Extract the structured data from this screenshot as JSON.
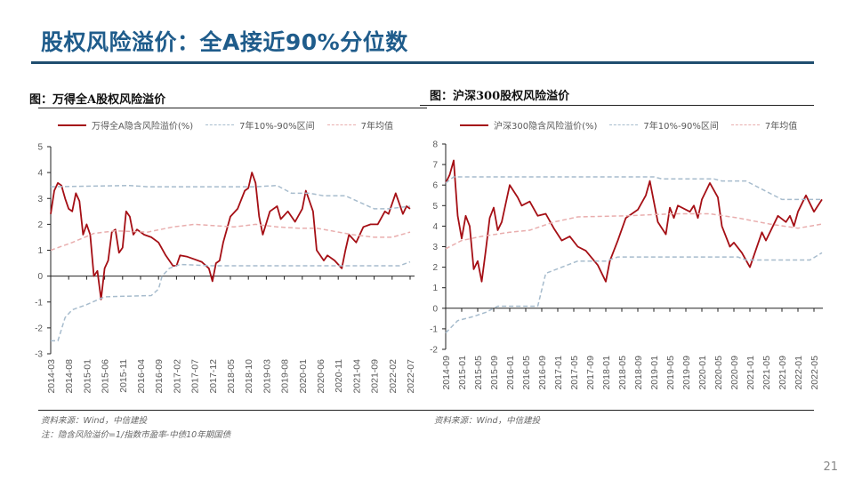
{
  "slide": {
    "title": "股权风险溢价：全A接近90%分位数",
    "page_number": "21"
  },
  "colors": {
    "title": "#1f5c8b",
    "series": "#a50f15",
    "band": "#a7bccd",
    "mean": "#e9aeae"
  },
  "chart_data": [
    {
      "type": "line",
      "figure_title": "图：万得全A股权风险溢价",
      "legend": [
        "万得全A隐含风险溢价(%)",
        "7年10%-90%区间",
        "7年均值"
      ],
      "legend_placement": "top",
      "ylim": [
        -3,
        5
      ],
      "yticks": [
        "5",
        "4",
        "3",
        "2",
        "1",
        "0",
        "-1",
        "-2",
        "-3"
      ],
      "xticks": [
        "2014-03",
        "2014-08",
        "2015-01",
        "2015-06",
        "2015-11",
        "2016-04",
        "2016-09",
        "2017-02",
        "2017-07",
        "2017-12",
        "2018-05",
        "2018-10",
        "2019-03",
        "2019-08",
        "2020-01",
        "2020-06",
        "2020-11",
        "2021-04",
        "2021-09",
        "2022-02",
        "2022-07"
      ],
      "source": "资料来源：Wind，中信建投",
      "note": "注：隐含风险溢价=1/指数市盈率-中债10年期国债",
      "series": [
        {
          "name": "万得全A隐含风险溢价(%)",
          "style": "solid",
          "points": [
            [
              "2014-03",
              2.4
            ],
            [
              "2014-04",
              3.3
            ],
            [
              "2014-05",
              3.6
            ],
            [
              "2014-06",
              3.5
            ],
            [
              "2014-07",
              3.0
            ],
            [
              "2014-08",
              2.6
            ],
            [
              "2014-09",
              2.5
            ],
            [
              "2014-10",
              3.2
            ],
            [
              "2014-11",
              2.9
            ],
            [
              "2014-12",
              1.6
            ],
            [
              "2015-01",
              2.0
            ],
            [
              "2015-02",
              1.6
            ],
            [
              "2015-03",
              0.0
            ],
            [
              "2015-04",
              0.2
            ],
            [
              "2015-05",
              -0.9
            ],
            [
              "2015-06",
              0.3
            ],
            [
              "2015-07",
              0.6
            ],
            [
              "2015-08",
              1.7
            ],
            [
              "2015-09",
              1.8
            ],
            [
              "2015-10",
              0.9
            ],
            [
              "2015-11",
              1.1
            ],
            [
              "2015-12",
              2.5
            ],
            [
              "2016-01",
              2.3
            ],
            [
              "2016-02",
              1.6
            ],
            [
              "2016-03",
              1.8
            ],
            [
              "2016-05",
              1.6
            ],
            [
              "2016-07",
              1.5
            ],
            [
              "2016-09",
              1.3
            ],
            [
              "2016-11",
              0.8
            ],
            [
              "2017-01",
              0.4
            ],
            [
              "2017-02",
              0.4
            ],
            [
              "2017-03",
              0.8
            ],
            [
              "2017-05",
              0.75
            ],
            [
              "2017-07",
              0.65
            ],
            [
              "2017-09",
              0.55
            ],
            [
              "2017-11",
              0.3
            ],
            [
              "2017-12",
              -0.2
            ],
            [
              "2018-01",
              0.5
            ],
            [
              "2018-02",
              0.6
            ],
            [
              "2018-03",
              1.3
            ],
            [
              "2018-05",
              2.3
            ],
            [
              "2018-07",
              2.6
            ],
            [
              "2018-09",
              3.3
            ],
            [
              "2018-10",
              3.4
            ],
            [
              "2018-11",
              4.0
            ],
            [
              "2018-12",
              3.6
            ],
            [
              "2019-01",
              2.3
            ],
            [
              "2019-02",
              1.6
            ],
            [
              "2019-04",
              2.5
            ],
            [
              "2019-06",
              2.7
            ],
            [
              "2019-07",
              2.2
            ],
            [
              "2019-09",
              2.5
            ],
            [
              "2019-11",
              2.1
            ],
            [
              "2020-01",
              2.6
            ],
            [
              "2020-02",
              3.3
            ],
            [
              "2020-04",
              2.5
            ],
            [
              "2020-05",
              1.0
            ],
            [
              "2020-07",
              0.6
            ],
            [
              "2020-08",
              0.8
            ],
            [
              "2020-10",
              0.6
            ],
            [
              "2020-12",
              0.3
            ],
            [
              "2021-01",
              1.0
            ],
            [
              "2021-02",
              1.6
            ],
            [
              "2021-04",
              1.3
            ],
            [
              "2021-06",
              1.9
            ],
            [
              "2021-08",
              2.0
            ],
            [
              "2021-10",
              2.0
            ],
            [
              "2021-12",
              2.5
            ],
            [
              "2022-01",
              2.4
            ],
            [
              "2022-03",
              3.2
            ],
            [
              "2022-04",
              2.8
            ],
            [
              "2022-05",
              2.4
            ],
            [
              "2022-06",
              2.7
            ],
            [
              "2022-07",
              2.6
            ]
          ]
        },
        {
          "name": "7年10%-90%区间",
          "style": "dashed",
          "points": [
            [
              "2014-03",
              3.45
            ],
            [
              "2016-01",
              3.5
            ],
            [
              "2016-06",
              3.45
            ],
            [
              "2018-12",
              3.45
            ],
            [
              "2019-06",
              3.5
            ],
            [
              "2019-10",
              3.2
            ],
            [
              "2020-03",
              3.2
            ],
            [
              "2020-07",
              3.1
            ],
            [
              "2021-01",
              3.1
            ],
            [
              "2021-09",
              2.6
            ],
            [
              "2022-01",
              2.6
            ],
            [
              "2022-07",
              2.7
            ]
          ]
        },
        {
          "name": "7年10%-90%区间",
          "style": "dashed",
          "points": [
            [
              "2014-03",
              -2.5
            ],
            [
              "2014-05",
              -2.5
            ],
            [
              "2014-07",
              -1.6
            ],
            [
              "2014-09",
              -1.3
            ],
            [
              "2015-01",
              -1.1
            ],
            [
              "2015-06",
              -0.8
            ],
            [
              "2016-07",
              -0.75
            ],
            [
              "2016-09",
              -0.5
            ],
            [
              "2016-10",
              0.0
            ],
            [
              "2016-12",
              0.3
            ],
            [
              "2017-03",
              0.45
            ],
            [
              "2017-12",
              0.4
            ],
            [
              "2022-04",
              0.4
            ],
            [
              "2022-07",
              0.55
            ]
          ]
        },
        {
          "name": "7年均值",
          "style": "dashed",
          "points": [
            [
              "2014-03",
              1.0
            ],
            [
              "2014-09",
              1.3
            ],
            [
              "2015-03",
              1.65
            ],
            [
              "2015-09",
              1.75
            ],
            [
              "2016-06",
              1.7
            ],
            [
              "2017-01",
              1.9
            ],
            [
              "2017-07",
              2.0
            ],
            [
              "2018-06",
              1.9
            ],
            [
              "2018-12",
              2.0
            ],
            [
              "2019-06",
              1.9
            ],
            [
              "2019-12",
              1.85
            ],
            [
              "2020-05",
              1.85
            ],
            [
              "2021-03",
              1.6
            ],
            [
              "2021-09",
              1.5
            ],
            [
              "2022-02",
              1.5
            ],
            [
              "2022-07",
              1.7
            ]
          ]
        }
      ]
    },
    {
      "type": "line",
      "figure_title": "图：沪深300股权风险溢价",
      "legend": [
        "沪深300隐含风险溢价(%)",
        "7年10%-90%区间",
        "7年均值"
      ],
      "legend_placement": "top",
      "ylim": [
        -2,
        8
      ],
      "yticks": [
        "8",
        "7",
        "6",
        "5",
        "4",
        "3",
        "2",
        "1",
        "0",
        "-1",
        "-2"
      ],
      "xticks": [
        "2014-09",
        "2015-01",
        "2015-05",
        "2015-09",
        "2016-01",
        "2016-05",
        "2016-09",
        "2017-01",
        "2017-05",
        "2017-09",
        "2018-01",
        "2018-05",
        "2018-09",
        "2019-01",
        "2019-05",
        "2019-09",
        "2020-01",
        "2020-05",
        "2020-09",
        "2021-01",
        "2021-05",
        "2021-09",
        "2022-01",
        "2022-05"
      ],
      "source": "资料来源：Wind，中信建投",
      "series": [
        {
          "name": "沪深300隐含风险溢价(%)",
          "style": "solid",
          "points": [
            [
              "2014-09",
              6.1
            ],
            [
              "2014-10",
              6.5
            ],
            [
              "2014-11",
              7.2
            ],
            [
              "2014-12",
              4.5
            ],
            [
              "2015-01",
              3.4
            ],
            [
              "2015-02",
              4.5
            ],
            [
              "2015-03",
              4.0
            ],
            [
              "2015-04",
              1.9
            ],
            [
              "2015-05",
              2.3
            ],
            [
              "2015-06",
              1.3
            ],
            [
              "2015-07",
              2.8
            ],
            [
              "2015-08",
              4.4
            ],
            [
              "2015-09",
              4.9
            ],
            [
              "2015-10",
              3.8
            ],
            [
              "2015-11",
              4.2
            ],
            [
              "2016-01",
              6.0
            ],
            [
              "2016-03",
              5.4
            ],
            [
              "2016-04",
              5.0
            ],
            [
              "2016-06",
              5.2
            ],
            [
              "2016-08",
              4.5
            ],
            [
              "2016-10",
              4.6
            ],
            [
              "2016-12",
              3.9
            ],
            [
              "2017-02",
              3.3
            ],
            [
              "2017-04",
              3.5
            ],
            [
              "2017-06",
              3.0
            ],
            [
              "2017-08",
              2.8
            ],
            [
              "2017-11",
              2.1
            ],
            [
              "2018-01",
              1.3
            ],
            [
              "2018-02",
              2.3
            ],
            [
              "2018-04",
              3.3
            ],
            [
              "2018-06",
              4.4
            ],
            [
              "2018-09",
              4.8
            ],
            [
              "2018-11",
              5.5
            ],
            [
              "2018-12",
              6.2
            ],
            [
              "2019-02",
              4.2
            ],
            [
              "2019-04",
              3.6
            ],
            [
              "2019-05",
              4.9
            ],
            [
              "2019-06",
              4.4
            ],
            [
              "2019-07",
              5.0
            ],
            [
              "2019-10",
              4.7
            ],
            [
              "2019-11",
              5.0
            ],
            [
              "2019-12",
              4.4
            ],
            [
              "2020-01",
              5.3
            ],
            [
              "2020-03",
              6.1
            ],
            [
              "2020-05",
              5.4
            ],
            [
              "2020-06",
              4.0
            ],
            [
              "2020-08",
              3.0
            ],
            [
              "2020-09",
              3.2
            ],
            [
              "2020-11",
              2.7
            ],
            [
              "2021-01",
              2.0
            ],
            [
              "2021-04",
              3.7
            ],
            [
              "2021-05",
              3.3
            ],
            [
              "2021-08",
              4.5
            ],
            [
              "2021-10",
              4.2
            ],
            [
              "2021-11",
              4.5
            ],
            [
              "2021-12",
              4.0
            ],
            [
              "2022-01",
              4.7
            ],
            [
              "2022-03",
              5.5
            ],
            [
              "2022-05",
              4.7
            ],
            [
              "2022-07",
              5.3
            ]
          ]
        },
        {
          "name": "7年10%-90%区间",
          "style": "dashed",
          "points": [
            [
              "2014-09",
              6.1
            ],
            [
              "2014-11",
              6.4
            ],
            [
              "2019-01",
              6.4
            ],
            [
              "2019-03",
              6.3
            ],
            [
              "2020-04",
              6.3
            ],
            [
              "2020-06",
              6.2
            ],
            [
              "2020-12",
              6.2
            ],
            [
              "2021-09",
              5.3
            ],
            [
              "2022-07",
              5.3
            ]
          ]
        },
        {
          "name": "7年10%-90%区间",
          "style": "dashed",
          "points": [
            [
              "2014-09",
              -1.2
            ],
            [
              "2014-12",
              -0.6
            ],
            [
              "2015-04",
              -0.4
            ],
            [
              "2015-07",
              -0.2
            ],
            [
              "2015-10",
              0.1
            ],
            [
              "2016-08",
              0.1
            ],
            [
              "2016-10",
              1.7
            ],
            [
              "2017-02",
              2.0
            ],
            [
              "2017-06",
              2.3
            ],
            [
              "2018-01",
              2.3
            ],
            [
              "2018-04",
              2.5
            ],
            [
              "2020-10",
              2.5
            ],
            [
              "2020-12",
              2.35
            ],
            [
              "2022-04",
              2.35
            ],
            [
              "2022-07",
              2.7
            ]
          ]
        },
        {
          "name": "7年均值",
          "style": "dashed",
          "points": [
            [
              "2014-09",
              2.9
            ],
            [
              "2015-01",
              3.3
            ],
            [
              "2015-06",
              3.5
            ],
            [
              "2016-01",
              3.7
            ],
            [
              "2016-06",
              3.8
            ],
            [
              "2016-12",
              4.2
            ],
            [
              "2017-06",
              4.45
            ],
            [
              "2018-06",
              4.5
            ],
            [
              "2019-06",
              4.6
            ],
            [
              "2020-03",
              4.6
            ],
            [
              "2020-10",
              4.4
            ],
            [
              "2021-06",
              4.1
            ],
            [
              "2022-01",
              3.9
            ],
            [
              "2022-07",
              4.1
            ]
          ]
        }
      ]
    }
  ]
}
